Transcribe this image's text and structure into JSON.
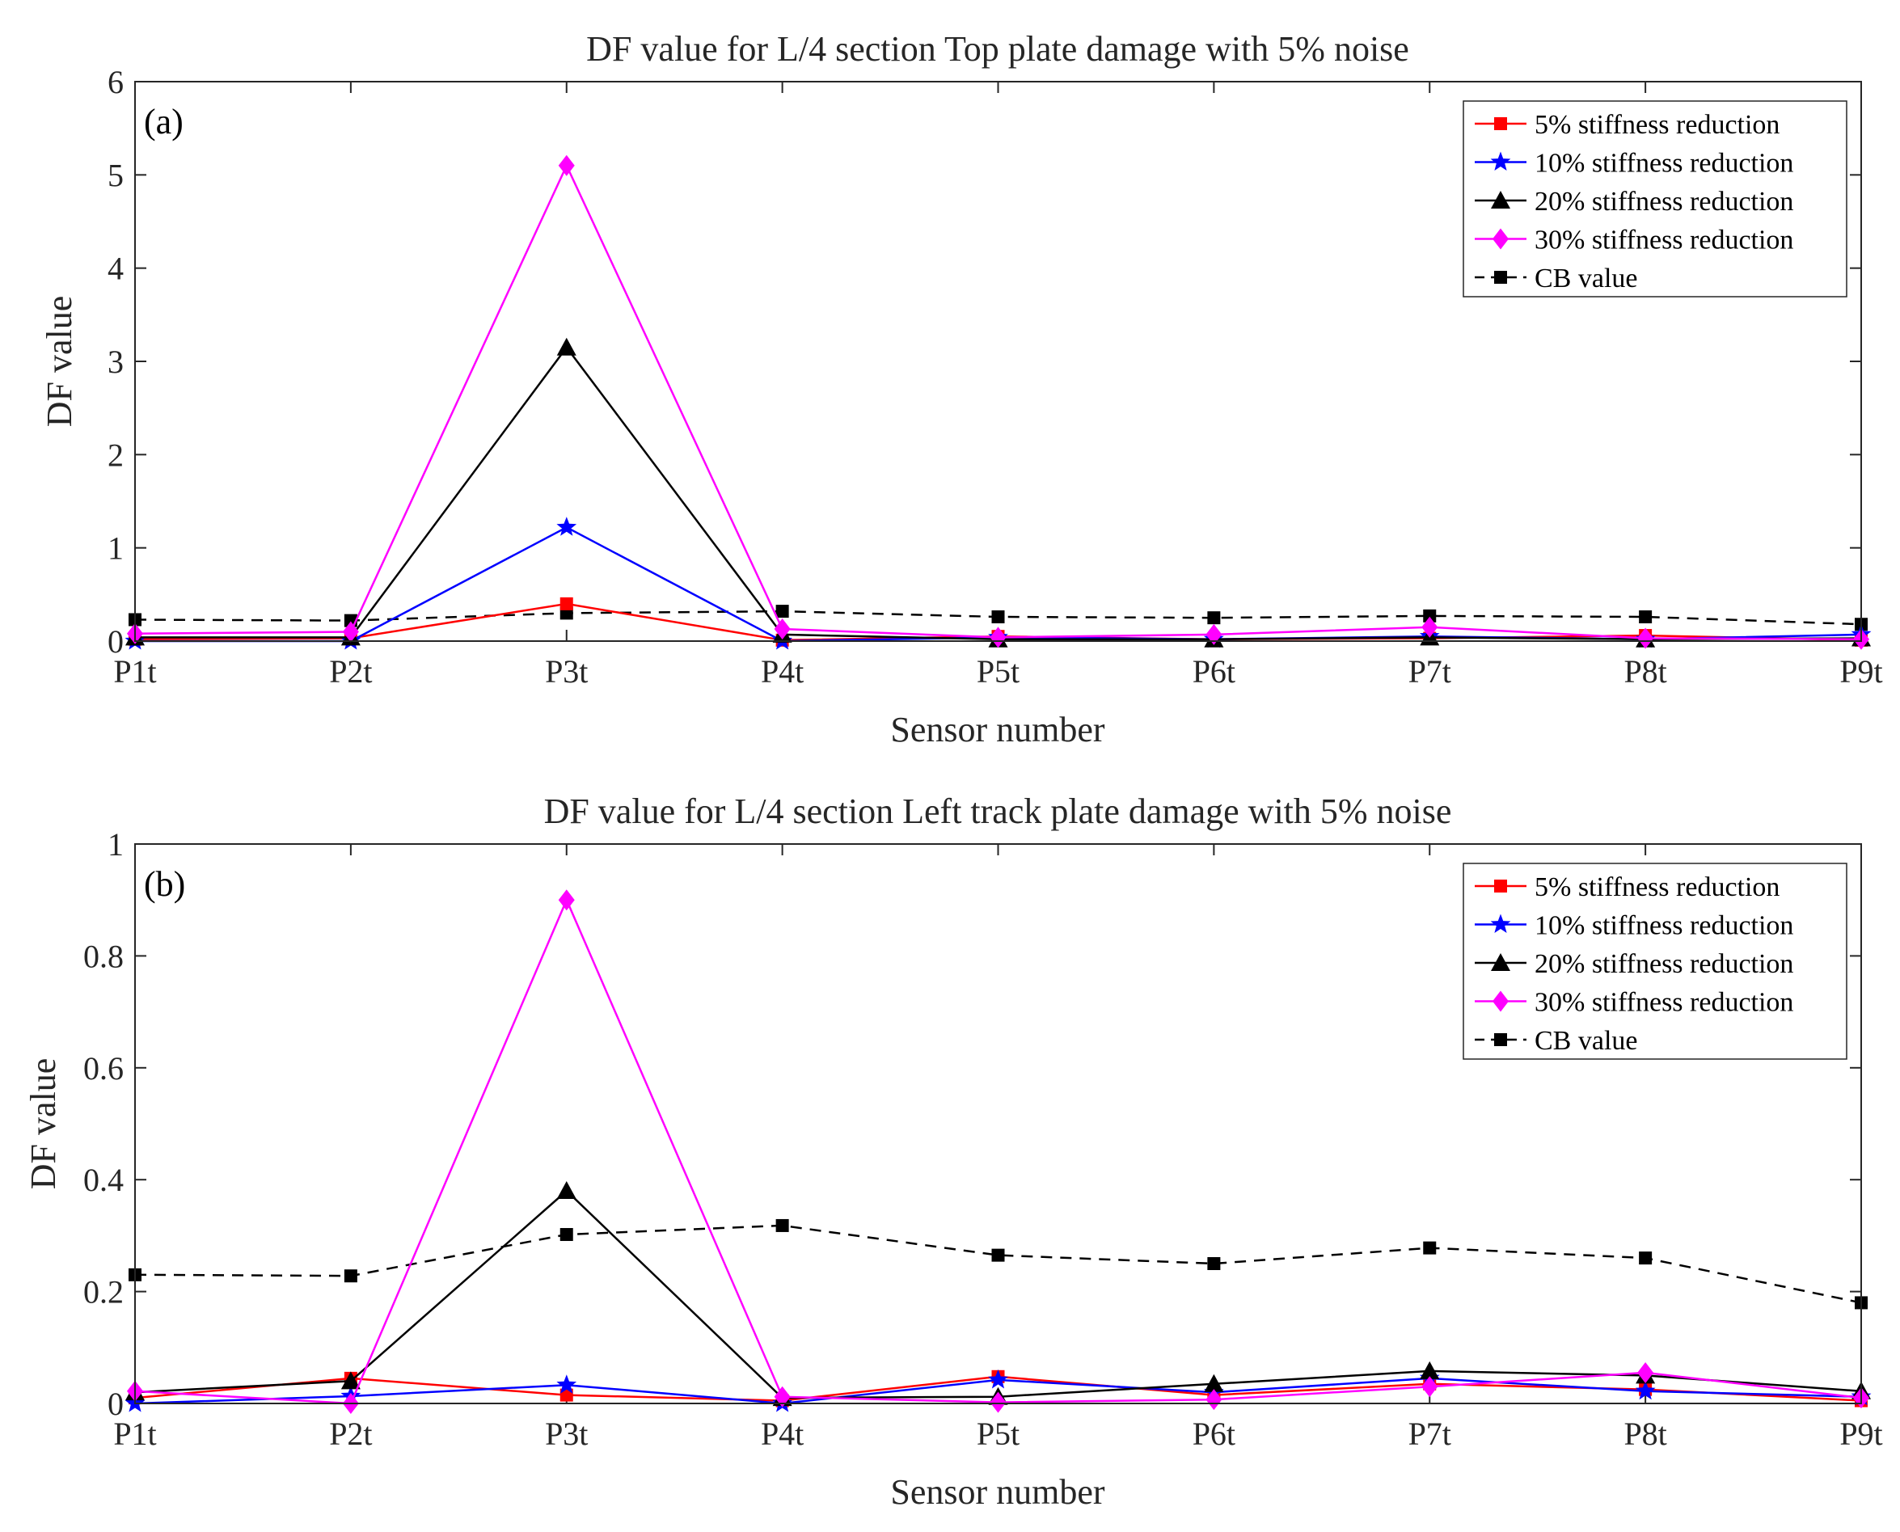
{
  "chart_data": [
    {
      "type": "line",
      "panel_label": "(a)",
      "title": "DF value  for L/4 section Top plate damage with 5% noise",
      "xlabel": "Sensor number",
      "ylabel": "DF value",
      "categories": [
        "P1t",
        "P2t",
        "P3t",
        "P4t",
        "P5t",
        "P6t",
        "P7t",
        "P8t",
        "P9t"
      ],
      "ylim": [
        0,
        6
      ],
      "yticks": [
        0,
        1,
        2,
        3,
        4,
        5,
        6
      ],
      "ytick_labels": [
        "0",
        "1",
        "2",
        "3",
        "4",
        "5",
        "6"
      ],
      "legend_position": "top-right",
      "series": [
        {
          "name": "5% stiffness reduction",
          "color": "#ff0000",
          "marker": "square",
          "dash": "solid",
          "values": [
            0.02,
            0.03,
            0.4,
            0.01,
            0.05,
            0.02,
            0.03,
            0.06,
            0.01
          ]
        },
        {
          "name": "10% stiffness reduction",
          "color": "#0000ff",
          "marker": "star",
          "dash": "solid",
          "values": [
            0.0,
            0.0,
            1.22,
            0.0,
            0.04,
            0.02,
            0.05,
            0.02,
            0.07
          ]
        },
        {
          "name": "20% stiffness reduction",
          "color": "#000000",
          "marker": "triangle",
          "dash": "solid",
          "values": [
            0.04,
            0.04,
            3.15,
            0.07,
            0.02,
            0.02,
            0.04,
            0.02,
            0.03
          ]
        },
        {
          "name": "30% stiffness reduction",
          "color": "#ff00ff",
          "marker": "diamond",
          "dash": "solid",
          "values": [
            0.08,
            0.1,
            5.1,
            0.13,
            0.04,
            0.07,
            0.15,
            0.03,
            0.02
          ]
        },
        {
          "name": "CB value",
          "color": "#000000",
          "marker": "square",
          "dash": "dashed",
          "values": [
            0.23,
            0.22,
            0.3,
            0.32,
            0.26,
            0.25,
            0.27,
            0.26,
            0.18
          ]
        }
      ]
    },
    {
      "type": "line",
      "panel_label": "(b)",
      "title": "DF value  for L/4 section Left track plate damage with 5% noise",
      "xlabel": "Sensor number",
      "ylabel": "DF value",
      "categories": [
        "P1t",
        "P2t",
        "P3t",
        "P4t",
        "P5t",
        "P6t",
        "P7t",
        "P8t",
        "P9t"
      ],
      "ylim": [
        0,
        1
      ],
      "yticks": [
        0,
        0.2,
        0.4,
        0.6,
        0.8,
        1
      ],
      "ytick_labels": [
        "0",
        "0.2",
        "0.4",
        "0.6",
        "0.8",
        "1"
      ],
      "legend_position": "top-right",
      "series": [
        {
          "name": "5% stiffness reduction",
          "color": "#ff0000",
          "marker": "square",
          "dash": "solid",
          "values": [
            0.01,
            0.045,
            0.015,
            0.005,
            0.048,
            0.015,
            0.035,
            0.025,
            0.005
          ]
        },
        {
          "name": "10% stiffness reduction",
          "color": "#0000ff",
          "marker": "star",
          "dash": "solid",
          "values": [
            0.0,
            0.013,
            0.033,
            0.0,
            0.042,
            0.02,
            0.045,
            0.022,
            0.012
          ]
        },
        {
          "name": "20% stiffness reduction",
          "color": "#000000",
          "marker": "triangle",
          "dash": "solid",
          "values": [
            0.02,
            0.04,
            0.38,
            0.01,
            0.012,
            0.035,
            0.058,
            0.05,
            0.022
          ]
        },
        {
          "name": "30% stiffness reduction",
          "color": "#ff00ff",
          "marker": "diamond",
          "dash": "solid",
          "values": [
            0.022,
            0.0,
            0.9,
            0.012,
            0.002,
            0.007,
            0.03,
            0.055,
            0.01
          ]
        },
        {
          "name": "CB value",
          "color": "#000000",
          "marker": "square",
          "dash": "dashed",
          "values": [
            0.23,
            0.228,
            0.302,
            0.318,
            0.265,
            0.25,
            0.278,
            0.26,
            0.18
          ]
        }
      ]
    }
  ]
}
